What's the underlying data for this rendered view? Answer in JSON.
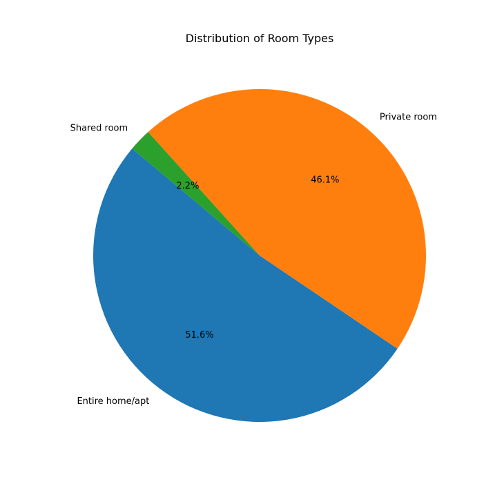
{
  "chart_data": {
    "type": "pie",
    "title": "Distribution of Room Types",
    "labels": [
      "Entire home/apt",
      "Private room",
      "Shared room"
    ],
    "values": [
      51.6,
      46.1,
      2.2
    ],
    "percent_labels": [
      "51.6%",
      "46.1%",
      "2.2%"
    ],
    "colors": [
      "#1f77b4",
      "#ff7f0e",
      "#2ca02c"
    ],
    "start_angle_deg": 140,
    "direction": "counterclockwise"
  }
}
